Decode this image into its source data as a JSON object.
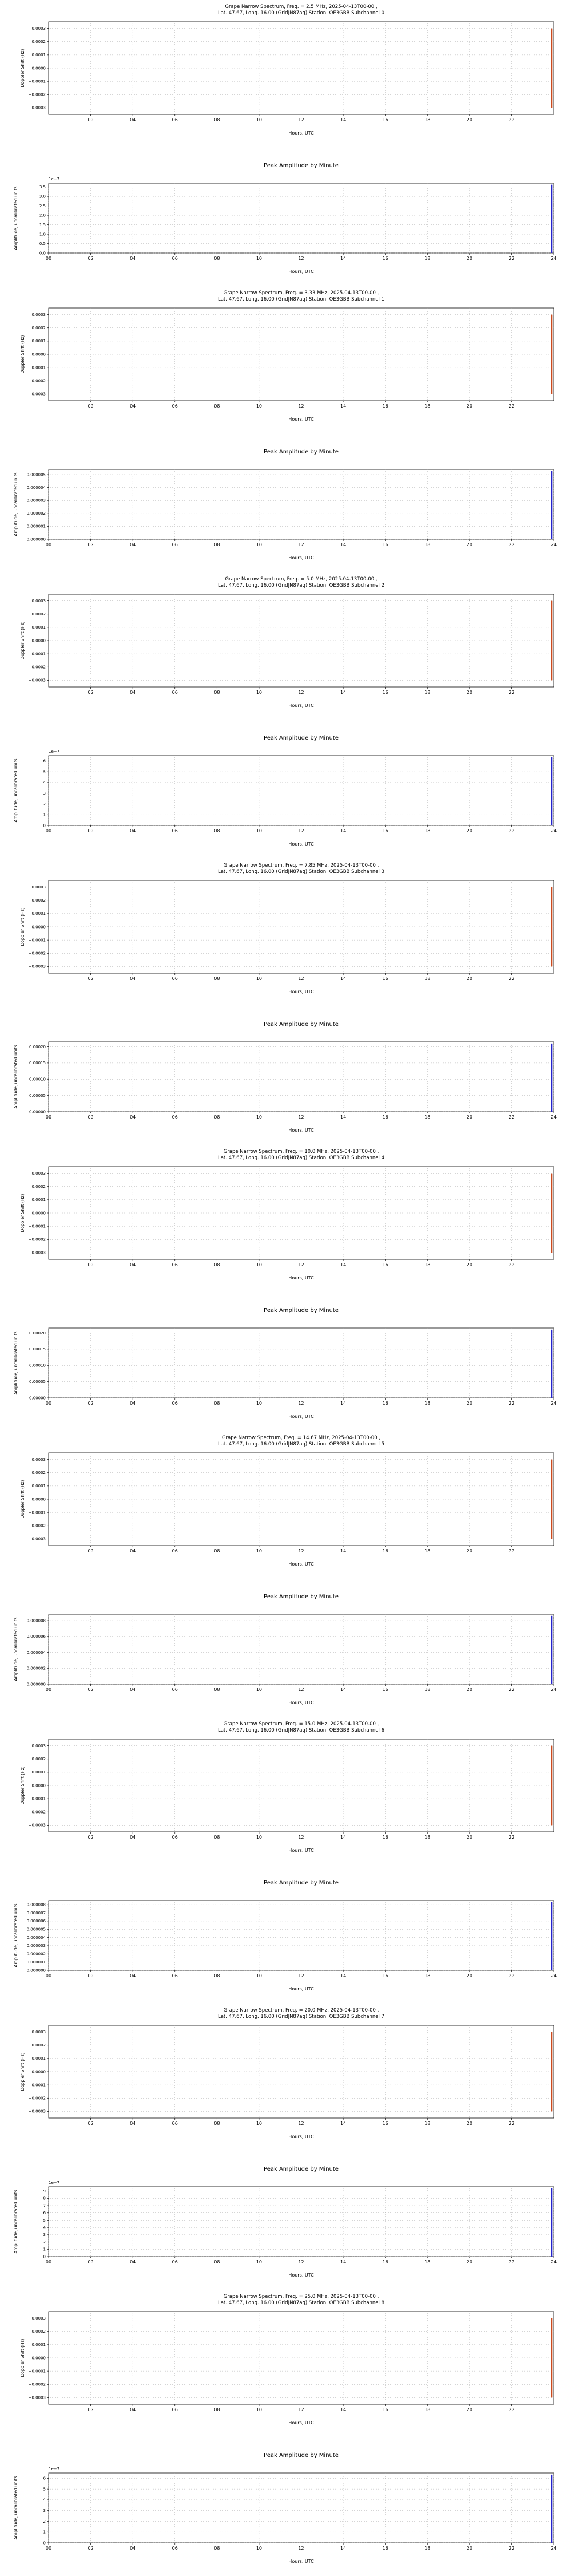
{
  "page": {
    "background": "#ffffff"
  },
  "chart_data": {
    "common": {
      "doppler": {
        "type": "line",
        "ylabel": "Doppler Shift (Hz)",
        "xlabel": "Hours, UTC",
        "xlim": [
          0,
          24
        ],
        "x_tick_values": [
          2,
          4,
          6,
          8,
          10,
          12,
          14,
          16,
          18,
          20,
          22
        ],
        "x_tick_labels": [
          "02",
          "04",
          "06",
          "08",
          "10",
          "12",
          "14",
          "16",
          "18",
          "20",
          "22"
        ],
        "ylim": [
          -0.00035,
          0.00035
        ],
        "y_tick_values": [
          -0.0003,
          -0.0002,
          -0.0001,
          0,
          0.0001,
          0.0002,
          0.0003
        ],
        "y_tick_labels": [
          "−0.0003",
          "−0.0002",
          "−0.0001",
          "0.0000",
          "0.0001",
          "0.0002",
          "0.0003"
        ],
        "grid": true,
        "legend": "none",
        "series": [
          {
            "name": "doppler-shift-trace",
            "x": [
              23.9,
              23.9
            ],
            "y": [
              -0.0003,
              0.0003
            ],
            "color": "#cc4a1d",
            "width": 2
          }
        ]
      },
      "amplitude": {
        "type": "line",
        "title": "Peak Amplitude by Minute",
        "ylabel": "Amplitude, uncalibrated units",
        "xlabel": "Hours, UTC",
        "xlim": [
          0,
          24
        ],
        "x_tick_values": [
          0,
          2,
          4,
          6,
          8,
          10,
          12,
          14,
          16,
          18,
          20,
          22,
          24
        ],
        "x_tick_labels": [
          "00",
          "02",
          "04",
          "06",
          "08",
          "10",
          "12",
          "14",
          "16",
          "18",
          "20",
          "22",
          "24"
        ],
        "grid": true,
        "legend": "none"
      }
    },
    "sections": [
      {
        "subchannel": 0,
        "freq_mhz": "2.5",
        "doppler_title": "Grape Narrow Spectrum, Freq. = 2.5 MHz, 2025-04-13T00-00 ,",
        "doppler_subtitle": "Lat.  47.67, Long.  16.00 (GridJN87aq) Station: OE3GBB Subchannel 0",
        "amplitude": {
          "offset_text": "1e−7",
          "ylim": [
            0,
            3.7e-07
          ],
          "y_tick_values": [
            0,
            5e-08,
            1e-07,
            1.5e-07,
            2e-07,
            2.5e-07,
            3e-07,
            3.5e-07
          ],
          "y_tick_labels": [
            "0.0",
            "0.5",
            "1.0",
            "1.5",
            "2.0",
            "2.5",
            "3.0",
            "3.5"
          ],
          "series": [
            {
              "name": "peak-amplitude-trace",
              "x": [
                23.9,
                23.9
              ],
              "y": [
                0,
                3.62e-07
              ],
              "color": "#2323cc",
              "width": 2
            }
          ]
        }
      },
      {
        "subchannel": 1,
        "freq_mhz": "3.33",
        "doppler_title": "Grape Narrow Spectrum, Freq. = 3.33 MHz, 2025-04-13T00-00 ,",
        "doppler_subtitle": "Lat.  47.67, Long.  16.00 (GridJN87aq) Station: OE3GBB Subchannel 1",
        "amplitude": {
          "offset_text": null,
          "ylim": [
            0,
            5.4e-06
          ],
          "y_tick_values": [
            0,
            1e-06,
            2e-06,
            3e-06,
            4e-06,
            5e-06
          ],
          "y_tick_labels": [
            "0.000000",
            "0.000001",
            "0.000002",
            "0.000003",
            "0.000004",
            "0.000005"
          ],
          "series": [
            {
              "name": "peak-amplitude-trace",
              "x": [
                23.9,
                23.9
              ],
              "y": [
                0,
                5.3e-06
              ],
              "color": "#2323cc",
              "width": 2
            }
          ]
        }
      },
      {
        "subchannel": 2,
        "freq_mhz": "5.0",
        "doppler_title": "Grape Narrow Spectrum, Freq. = 5.0 MHz, 2025-04-13T00-00 ,",
        "doppler_subtitle": "Lat.  47.67, Long.  16.00 (GridJN87aq) Station: OE3GBB Subchannel 2",
        "amplitude": {
          "offset_text": "1e−7",
          "ylim": [
            0,
            6.5e-07
          ],
          "y_tick_values": [
            0,
            1e-07,
            2e-07,
            3e-07,
            4e-07,
            5e-07,
            6e-07
          ],
          "y_tick_labels": [
            "0",
            "1",
            "2",
            "3",
            "4",
            "5",
            "6"
          ],
          "series": [
            {
              "name": "peak-amplitude-trace",
              "x": [
                23.9,
                23.9
              ],
              "y": [
                0,
                6.35e-07
              ],
              "color": "#2323cc",
              "width": 2
            }
          ]
        }
      },
      {
        "subchannel": 3,
        "freq_mhz": "7.85",
        "doppler_title": "Grape Narrow Spectrum, Freq. = 7.85 MHz, 2025-04-13T00-00 ,",
        "doppler_subtitle": "Lat.  47.67, Long.  16.00 (GridJN87aq) Station: OE3GBB Subchannel 3",
        "amplitude": {
          "offset_text": null,
          "ylim": [
            0,
            0.000215
          ],
          "y_tick_values": [
            0,
            5e-05,
            0.0001,
            0.00015,
            0.0002
          ],
          "y_tick_labels": [
            "0.00000",
            "0.00005",
            "0.00010",
            "0.00015",
            "0.00020"
          ],
          "series": [
            {
              "name": "peak-amplitude-trace",
              "x": [
                23.9,
                23.9
              ],
              "y": [
                0,
                0.00021
              ],
              "color": "#2323cc",
              "width": 2
            }
          ]
        }
      },
      {
        "subchannel": 4,
        "freq_mhz": "10.0",
        "doppler_title": "Grape Narrow Spectrum, Freq. = 10.0 MHz, 2025-04-13T00-00 ,",
        "doppler_subtitle": "Lat.  47.67, Long.  16.00 (GridJN87aq) Station: OE3GBB Subchannel 4",
        "amplitude": {
          "offset_text": null,
          "ylim": [
            0,
            0.000215
          ],
          "y_tick_values": [
            0,
            5e-05,
            0.0001,
            0.00015,
            0.0002
          ],
          "y_tick_labels": [
            "0.00000",
            "0.00005",
            "0.00010",
            "0.00015",
            "0.00020"
          ],
          "series": [
            {
              "name": "peak-amplitude-trace",
              "x": [
                23.9,
                23.9
              ],
              "y": [
                0,
                0.00021
              ],
              "color": "#2323cc",
              "width": 2
            }
          ]
        }
      },
      {
        "subchannel": 5,
        "freq_mhz": "14.67",
        "doppler_title": "Grape Narrow Spectrum, Freq. = 14.67 MHz, 2025-04-13T00-00 ,",
        "doppler_subtitle": "Lat.  47.67, Long.  16.00 (GridJN87aq) Station: OE3GBB Subchannel 5",
        "amplitude": {
          "offset_text": null,
          "ylim": [
            0,
            8.8e-06
          ],
          "y_tick_values": [
            0,
            2e-06,
            4e-06,
            6e-06,
            8e-06
          ],
          "y_tick_labels": [
            "0.000000",
            "0.000002",
            "0.000004",
            "0.000006",
            "0.000008"
          ],
          "series": [
            {
              "name": "peak-amplitude-trace",
              "x": [
                23.9,
                23.9
              ],
              "y": [
                0,
                8.6e-06
              ],
              "color": "#2323cc",
              "width": 2
            }
          ]
        }
      },
      {
        "subchannel": 6,
        "freq_mhz": "15.0",
        "doppler_title": "Grape Narrow Spectrum, Freq. = 15.0 MHz, 2025-04-13T00-00 ,",
        "doppler_subtitle": "Lat.  47.67, Long.  16.00 (GridJN87aq) Station: OE3GBB Subchannel 6",
        "amplitude": {
          "offset_text": null,
          "ylim": [
            0,
            8.5e-06
          ],
          "y_tick_values": [
            0,
            1e-06,
            2e-06,
            3e-06,
            4e-06,
            5e-06,
            6e-06,
            7e-06,
            8e-06
          ],
          "y_tick_labels": [
            "0.000000",
            "0.000001",
            "0.000002",
            "0.000003",
            "0.000004",
            "0.000005",
            "0.000006",
            "0.000007",
            "0.000008"
          ],
          "series": [
            {
              "name": "peak-amplitude-trace",
              "x": [
                23.9,
                23.9
              ],
              "y": [
                0,
                8.35e-06
              ],
              "color": "#2323cc",
              "width": 2
            }
          ]
        }
      },
      {
        "subchannel": 7,
        "freq_mhz": "20.0",
        "doppler_title": "Grape Narrow Spectrum, Freq. = 20.0 MHz, 2025-04-13T00-00 ,",
        "doppler_subtitle": "Lat.  47.67, Long.  16.00 (GridJN87aq) Station: OE3GBB Subchannel 7",
        "amplitude": {
          "offset_text": "1e−7",
          "ylim": [
            0,
            9.6e-07
          ],
          "y_tick_values": [
            0,
            1e-07,
            2e-07,
            3e-07,
            4e-07,
            5e-07,
            6e-07,
            7e-07,
            8e-07,
            9e-07
          ],
          "y_tick_labels": [
            "0",
            "1",
            "2",
            "3",
            "4",
            "5",
            "6",
            "7",
            "8",
            "9"
          ],
          "series": [
            {
              "name": "peak-amplitude-trace",
              "x": [
                23.9,
                23.9
              ],
              "y": [
                0,
                9.4e-07
              ],
              "color": "#2323cc",
              "width": 2
            }
          ]
        }
      },
      {
        "subchannel": 8,
        "freq_mhz": "25.0",
        "doppler_title": "Grape Narrow Spectrum, Freq. = 25.0 MHz, 2025-04-13T00-00 ,",
        "doppler_subtitle": "Lat.  47.67, Long.  16.00 (GridJN87aq) Station: OE3GBB Subchannel 8",
        "amplitude": {
          "offset_text": "1e−7",
          "ylim": [
            0,
            6.5e-07
          ],
          "y_tick_values": [
            0,
            1e-07,
            2e-07,
            3e-07,
            4e-07,
            5e-07,
            6e-07
          ],
          "y_tick_labels": [
            "0",
            "1",
            "2",
            "3",
            "4",
            "5",
            "6"
          ],
          "series": [
            {
              "name": "peak-amplitude-trace",
              "x": [
                23.9,
                23.9
              ],
              "y": [
                0,
                6.35e-07
              ],
              "color": "#2323cc",
              "width": 2
            }
          ]
        }
      }
    ]
  }
}
